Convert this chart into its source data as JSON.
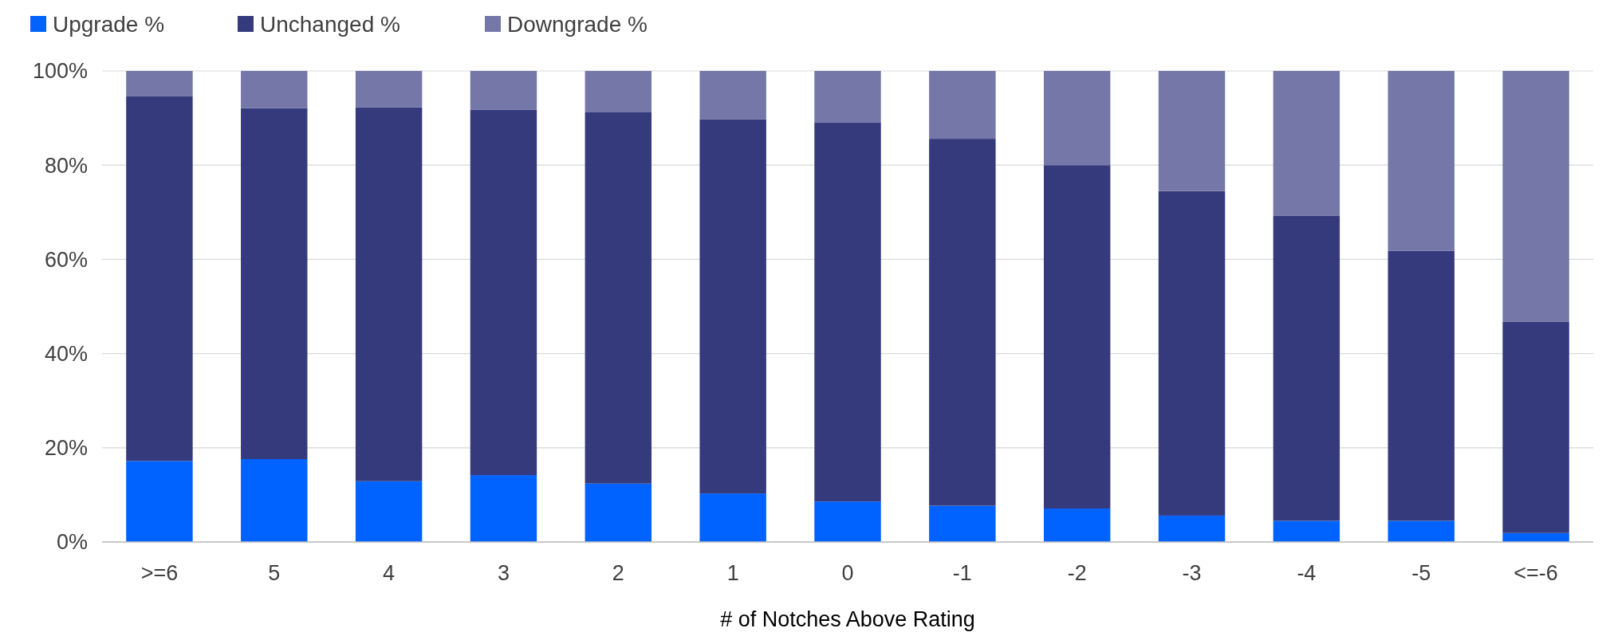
{
  "chart_data": {
    "type": "bar",
    "stacked": true,
    "xlabel": "# of Notches Above Rating",
    "categories": [
      ">=6",
      "5",
      "4",
      "3",
      "2",
      "1",
      "0",
      "-1",
      "-2",
      "-3",
      "-4",
      "-5",
      "<=-6"
    ],
    "series": [
      {
        "name": "Upgrade %",
        "color": "#0062ff",
        "values": [
          17.2,
          17.6,
          12.9,
          14.2,
          12.4,
          10.3,
          8.6,
          7.7,
          7.1,
          5.6,
          4.5,
          4.5,
          1.9
        ]
      },
      {
        "name": "Unchanged %",
        "color": "#343a7c",
        "values": [
          77.4,
          74.5,
          79.4,
          77.6,
          78.8,
          79.4,
          80.5,
          77.9,
          72.9,
          68.9,
          64.8,
          57.3,
          44.9
        ]
      },
      {
        "name": "Downgrade %",
        "color": "#7477a8",
        "values": [
          5.4,
          7.9,
          7.7,
          8.2,
          8.8,
          10.3,
          10.9,
          14.4,
          20.0,
          25.5,
          30.7,
          38.2,
          53.2
        ]
      }
    ],
    "ylim": [
      0,
      100
    ],
    "yticks": [
      {
        "value": 0,
        "label": "0%"
      },
      {
        "value": 20,
        "label": "20%"
      },
      {
        "value": 40,
        "label": "40%"
      },
      {
        "value": 60,
        "label": "60%"
      },
      {
        "value": 80,
        "label": "80%"
      },
      {
        "value": 100,
        "label": "100%"
      }
    ],
    "grid": "y",
    "legend": "top left"
  }
}
